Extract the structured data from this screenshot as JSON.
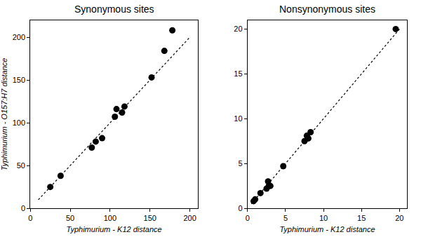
{
  "chart_data": [
    {
      "type": "scatter",
      "title": "Synonymous sites",
      "x_label": "Typhimurium - K12 distance",
      "y_label": "Typhimurium - O157:H7 distance",
      "xlim": [
        0,
        210
      ],
      "xticks": [
        0,
        50,
        100,
        150,
        200
      ],
      "ylim": [
        0,
        220
      ],
      "yticks": [
        0,
        50,
        100,
        150,
        200
      ],
      "grid": false,
      "series": [
        {
          "type": "scatter",
          "marker": "circle",
          "color": "#000000",
          "x": [
            25,
            38,
            77,
            82,
            90,
            106,
            108,
            115,
            118,
            152,
            168,
            178
          ],
          "values": [
            25,
            38,
            71,
            78,
            82,
            107,
            116,
            112,
            119,
            153,
            184,
            208
          ]
        },
        {
          "type": "line",
          "line_style": "dotted",
          "color": "#000000",
          "x": [
            10,
            200
          ],
          "values": [
            10,
            200
          ]
        }
      ]
    },
    {
      "type": "scatter",
      "title": "Nonsynonymous sites",
      "x_label": "Typhimurium - K12 distance",
      "xlim": [
        0,
        21
      ],
      "xticks": [
        0,
        5,
        10,
        15,
        20
      ],
      "ylim": [
        0,
        21
      ],
      "yticks": [
        0,
        5,
        10,
        15,
        20
      ],
      "grid": false,
      "series": [
        {
          "type": "scatter",
          "marker": "circle",
          "color": "#000000",
          "x": [
            0.8,
            1,
            1.7,
            2.5,
            2.7,
            2.8,
            3,
            4.7,
            7.5,
            7.8,
            8,
            8.3,
            19.5
          ],
          "values": [
            0.8,
            1,
            1.7,
            2.2,
            3,
            2.5,
            2.5,
            4.7,
            7.5,
            8.1,
            7.8,
            8.5,
            20
          ]
        },
        {
          "type": "line",
          "line_style": "dotted",
          "color": "#000000",
          "x": [
            0.5,
            20
          ],
          "values": [
            0.5,
            20
          ]
        }
      ]
    }
  ]
}
